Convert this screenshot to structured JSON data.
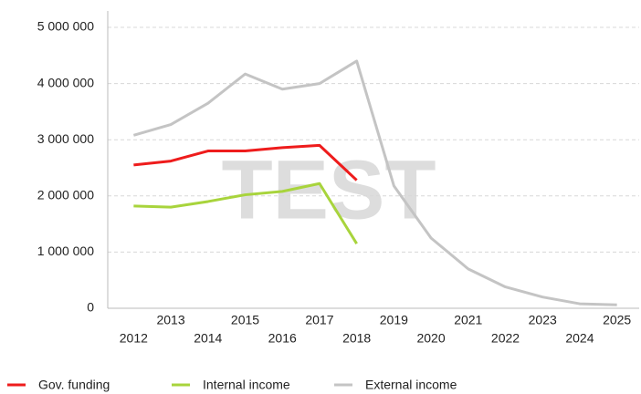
{
  "chart_data": {
    "type": "line",
    "annotation": "TEST",
    "categories": [
      "2012",
      "2013",
      "2014",
      "2015",
      "2016",
      "2017",
      "2018",
      "2019",
      "2020",
      "2021",
      "2022",
      "2023",
      "2024",
      "2025"
    ],
    "series": [
      {
        "name": "Gov. funding",
        "color": "#ee1c1c",
        "values": [
          2550000,
          2620000,
          2800000,
          2800000,
          2860000,
          2900000,
          2280000,
          null,
          null,
          null,
          null,
          null,
          null,
          null
        ]
      },
      {
        "name": "Internal income",
        "color": "#a8d43c",
        "values": [
          1820000,
          1800000,
          1900000,
          2020000,
          2080000,
          2220000,
          1150000,
          null,
          null,
          null,
          null,
          null,
          null,
          null
        ]
      },
      {
        "name": "External income",
        "color": "#c4c4c4",
        "values": [
          3080000,
          3270000,
          3650000,
          4170000,
          3900000,
          4000000,
          4400000,
          2180000,
          1250000,
          700000,
          380000,
          200000,
          80000,
          60000
        ]
      }
    ],
    "ylim": [
      0,
      5000000
    ],
    "yticks": [
      0,
      {
        "value": 1000000,
        "label": "1 000 000"
      },
      {
        "value": 2000000,
        "label": "2 000 000"
      },
      {
        "value": 3000000,
        "label": "3 000 000"
      },
      {
        "value": 4000000,
        "label": "4 000 000"
      },
      {
        "value": 5000000,
        "label": "5 000 000"
      }
    ],
    "grid": true,
    "legend": "bottom"
  }
}
